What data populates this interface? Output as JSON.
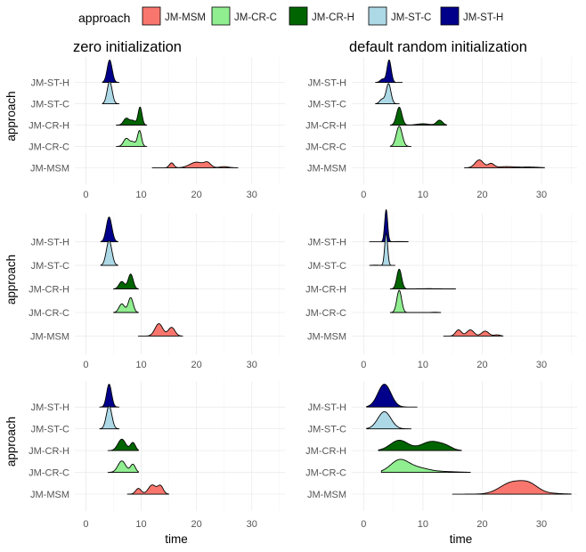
{
  "legend": {
    "title": "approach",
    "entries": [
      {
        "label": "JM-MSM",
        "color": "#F8766D"
      },
      {
        "label": "JM-CR-C",
        "color": "#90EE90"
      },
      {
        "label": "JM-CR-H",
        "color": "#006400"
      },
      {
        "label": "JM-ST-C",
        "color": "#ADD8E6"
      },
      {
        "label": "JM-ST-H",
        "color": "#00008B"
      }
    ]
  },
  "column_titles": [
    "zero initialization",
    "default random initialization"
  ],
  "chart_data": {
    "type": "ridgeline",
    "xlabel": "time",
    "ylabel": "approach",
    "x_ticks": [
      0,
      10,
      20,
      30
    ],
    "categories": [
      "JM-MSM",
      "JM-CR-C",
      "JM-CR-H",
      "JM-ST-C",
      "JM-ST-H"
    ],
    "colors": {
      "JM-MSM": "#F8766D",
      "JM-CR-C": "#90EE90",
      "JM-CR-H": "#006400",
      "JM-ST-C": "#ADD8E6",
      "JM-ST-H": "#00008B"
    },
    "panels": [
      {
        "row": 1,
        "col": 1,
        "title": "zero initialization",
        "xlim": [
          -2,
          36
        ],
        "ridges": [
          {
            "category": "JM-MSM",
            "range": [
              12,
              27.5
            ],
            "peaks": [
              [
                15.5,
                0.22,
                0.4
              ],
              [
                20,
                0.25,
                1.2
              ],
              [
                22,
                0.2,
                0.6
              ],
              [
                25,
                0.05,
                0.8
              ]
            ]
          },
          {
            "category": "JM-CR-C",
            "range": [
              5.5,
              11
            ],
            "peaks": [
              [
                7.3,
                0.35,
                0.5
              ],
              [
                9.7,
                0.7,
                0.35
              ],
              [
                8.5,
                0.2,
                0.5
              ]
            ]
          },
          {
            "category": "JM-CR-H",
            "range": [
              5.5,
              11
            ],
            "peaks": [
              [
                7.3,
                0.3,
                0.5
              ],
              [
                9.8,
                0.8,
                0.35
              ],
              [
                8.5,
                0.2,
                0.5
              ]
            ]
          },
          {
            "category": "JM-ST-C",
            "range": [
              3,
              6
            ],
            "peaks": [
              [
                4.3,
                1.0,
                0.45
              ]
            ]
          },
          {
            "category": "JM-ST-H",
            "range": [
              3,
              6
            ],
            "peaks": [
              [
                4.3,
                1.0,
                0.45
              ]
            ]
          }
        ]
      },
      {
        "row": 1,
        "col": 2,
        "title": "default random initialization",
        "xlim": [
          -2,
          36
        ],
        "ridges": [
          {
            "category": "JM-MSM",
            "range": [
              17,
              30.5
            ],
            "peaks": [
              [
                19.5,
                0.35,
                0.7
              ],
              [
                21.5,
                0.18,
                0.5
              ],
              [
                24,
                0.05,
                1.5
              ],
              [
                28,
                0.03,
                1.5
              ]
            ]
          },
          {
            "category": "JM-CR-C",
            "range": [
              4.5,
              8
            ],
            "peaks": [
              [
                6,
                0.9,
                0.5
              ]
            ]
          },
          {
            "category": "JM-CR-H",
            "range": [
              4.5,
              14
            ],
            "peaks": [
              [
                6,
                0.8,
                0.45
              ],
              [
                10,
                0.06,
                1
              ],
              [
                12.8,
                0.22,
                0.5
              ]
            ]
          },
          {
            "category": "JM-ST-C",
            "range": [
              2,
              6
            ],
            "peaks": [
              [
                4.2,
                0.9,
                0.4
              ],
              [
                3.1,
                0.2,
                0.4
              ]
            ]
          },
          {
            "category": "JM-ST-H",
            "range": [
              2,
              6.5
            ],
            "peaks": [
              [
                4.3,
                1.0,
                0.35
              ],
              [
                3.2,
                0.15,
                0.4
              ]
            ]
          }
        ]
      },
      {
        "row": 2,
        "col": 1,
        "xlim": [
          -2,
          36
        ],
        "ridges": [
          {
            "category": "JM-MSM",
            "range": [
              9.5,
              17.5
            ],
            "peaks": [
              [
                13.2,
                0.5,
                0.7
              ],
              [
                15.5,
                0.35,
                0.6
              ]
            ]
          },
          {
            "category": "JM-CR-C",
            "range": [
              5,
              9.5
            ],
            "peaks": [
              [
                6.5,
                0.35,
                0.5
              ],
              [
                8.1,
                0.6,
                0.45
              ]
            ]
          },
          {
            "category": "JM-CR-H",
            "range": [
              5,
              9.5
            ],
            "peaks": [
              [
                6.5,
                0.3,
                0.5
              ],
              [
                8.1,
                0.6,
                0.45
              ]
            ]
          },
          {
            "category": "JM-ST-C",
            "range": [
              2.7,
              5.8
            ],
            "peaks": [
              [
                4.2,
                1.0,
                0.5
              ]
            ]
          },
          {
            "category": "JM-ST-H",
            "range": [
              2.7,
              5.8
            ],
            "peaks": [
              [
                4.2,
                1.0,
                0.5
              ]
            ]
          }
        ]
      },
      {
        "row": 2,
        "col": 2,
        "xlim": [
          -2,
          36
        ],
        "ridges": [
          {
            "category": "JM-MSM",
            "range": [
              13.5,
              23.5
            ],
            "peaks": [
              [
                16,
                0.25,
                0.5
              ],
              [
                18,
                0.25,
                0.6
              ],
              [
                20.5,
                0.2,
                0.6
              ],
              [
                22.5,
                0.05,
                0.5
              ]
            ]
          },
          {
            "category": "JM-CR-C",
            "range": [
              4.5,
              13
            ],
            "peaks": [
              [
                6,
                0.9,
                0.4
              ],
              [
                12,
                0.01,
                0.5
              ]
            ]
          },
          {
            "category": "JM-CR-H",
            "range": [
              4.5,
              15.5
            ],
            "peaks": [
              [
                6,
                0.8,
                0.4
              ],
              [
                11,
                0.01,
                2
              ]
            ]
          },
          {
            "category": "JM-ST-C",
            "range": [
              1,
              5.3
            ],
            "peaks": [
              [
                3.8,
                1.3,
                0.25
              ],
              [
                2,
                0.01,
                0.5
              ]
            ]
          },
          {
            "category": "JM-ST-H",
            "range": [
              1,
              7.5
            ],
            "peaks": [
              [
                3.8,
                1.3,
                0.25
              ],
              [
                6,
                0.01,
                1
              ]
            ]
          }
        ]
      },
      {
        "row": 3,
        "col": 1,
        "xlim": [
          -2,
          36
        ],
        "ridges": [
          {
            "category": "JM-MSM",
            "range": [
              7.5,
              15
            ],
            "peaks": [
              [
                9.5,
                0.25,
                0.5
              ],
              [
                12,
                0.4,
                0.7
              ],
              [
                13.5,
                0.35,
                0.5
              ]
            ]
          },
          {
            "category": "JM-CR-C",
            "range": [
              4,
              9.5
            ],
            "peaks": [
              [
                6.5,
                0.5,
                0.7
              ],
              [
                8.5,
                0.35,
                0.45
              ]
            ]
          },
          {
            "category": "JM-CR-H",
            "range": [
              4,
              9.5
            ],
            "peaks": [
              [
                6.5,
                0.5,
                0.7
              ],
              [
                8.5,
                0.35,
                0.45
              ]
            ]
          },
          {
            "category": "JM-ST-C",
            "range": [
              2.5,
              6
            ],
            "peaks": [
              [
                4.2,
                1.0,
                0.5
              ]
            ]
          },
          {
            "category": "JM-ST-H",
            "range": [
              2.5,
              6
            ],
            "peaks": [
              [
                4.2,
                1.0,
                0.45
              ]
            ]
          }
        ]
      },
      {
        "row": 3,
        "col": 2,
        "xlim": [
          -2,
          36
        ],
        "ridges": [
          {
            "category": "JM-MSM",
            "range": [
              15,
              35
            ],
            "peaks": [
              [
                25,
                0.5,
                2
              ],
              [
                28,
                0.35,
                1.5
              ],
              [
                31,
                0.04,
                2
              ]
            ]
          },
          {
            "category": "JM-CR-C",
            "range": [
              3,
              18
            ],
            "peaks": [
              [
                6,
                0.5,
                1.5
              ],
              [
                9,
                0.2,
                2
              ],
              [
                14,
                0.03,
                2
              ]
            ]
          },
          {
            "category": "JM-CR-H",
            "range": [
              2.5,
              16.5
            ],
            "peaks": [
              [
                6,
                0.45,
                1.5
              ],
              [
                11.5,
                0.4,
                1.8
              ],
              [
                14,
                0.1,
                1
              ]
            ]
          },
          {
            "category": "JM-ST-C",
            "range": [
              0.5,
              8
            ],
            "peaks": [
              [
                3.5,
                0.75,
                1.1
              ]
            ]
          },
          {
            "category": "JM-ST-H",
            "range": [
              0.5,
              9
            ],
            "peaks": [
              [
                3.5,
                1.0,
                1.1
              ]
            ]
          }
        ]
      }
    ]
  }
}
